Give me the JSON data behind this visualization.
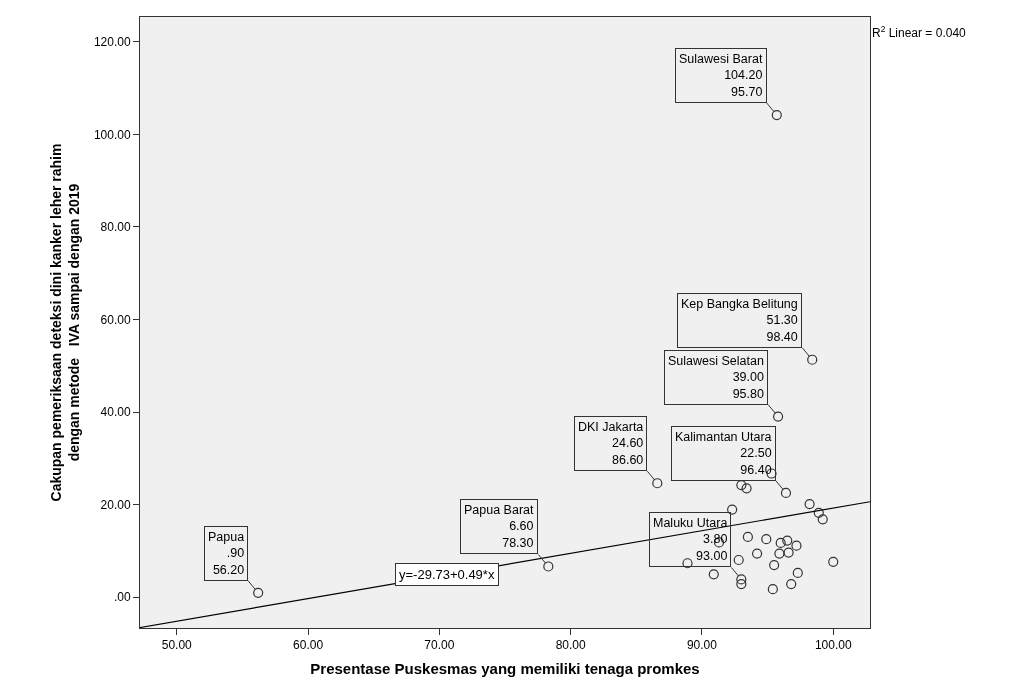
{
  "chart_data": {
    "type": "scatter",
    "xlabel": "Presentase Puskesmas yang memiliki tenaga promkes",
    "ylabel": "Cakupan pemeriksaan deteksi dini kanker leher rahim\ndengan metode   IVA sampai dengan 2019",
    "xlim": [
      47.2,
      102.8
    ],
    "xticks": [
      {
        "value": 50,
        "label": "50.00"
      },
      {
        "value": 60,
        "label": "60.00"
      },
      {
        "value": 70,
        "label": "70.00"
      },
      {
        "value": 80,
        "label": "80.00"
      },
      {
        "value": 90,
        "label": "90.00"
      },
      {
        "value": 100,
        "label": "100.00"
      }
    ],
    "ylim": [
      -6.7,
      125.4
    ],
    "yticks": [
      {
        "value": 0,
        "label": ".00"
      },
      {
        "value": 20,
        "label": "20.00"
      },
      {
        "value": 40,
        "label": "40.00"
      },
      {
        "value": 60,
        "label": "60.00"
      },
      {
        "value": 80,
        "label": "80.00"
      },
      {
        "value": 100,
        "label": "100.00"
      },
      {
        "value": 120,
        "label": "120.00"
      }
    ],
    "grid": false,
    "legend": false,
    "series": [
      {
        "marker": "circle",
        "color": "#333333",
        "x": [
          56.2,
          95.7,
          98.4,
          95.8,
          86.6,
          96.4,
          78.3,
          93.0,
          95.3,
          93.0,
          93.4,
          92.3,
          98.2,
          98.9,
          99.2,
          94.9,
          91.3,
          93.5,
          96.0,
          96.5,
          97.2,
          94.2,
          95.9,
          96.6,
          92.8,
          88.9,
          95.5,
          100.0,
          90.9,
          93.0,
          97.3,
          96.8,
          95.4
        ],
        "values": [
          0.9,
          104.2,
          51.3,
          39.0,
          24.6,
          22.5,
          6.6,
          3.8,
          26.7,
          24.2,
          23.5,
          18.9,
          20.1,
          18.2,
          16.8,
          12.5,
          11.8,
          13.0,
          11.7,
          12.2,
          11.1,
          9.4,
          9.4,
          9.6,
          8.0,
          7.3,
          6.9,
          7.6,
          4.9,
          2.8,
          5.2,
          2.8,
          1.7
        ]
      },
      {
        "type": "line",
        "color": "#000000",
        "x": [
          47.2,
          102.8
        ],
        "values": [
          -6.6,
          20.6
        ]
      }
    ],
    "annotations": [
      "R$^{2}$ Linear = 0.040",
      "y=-29.73+0.49*x",
      {
        "text": "Papua\n.90\n56.20",
        "x": 56.2,
        "y": 0.9
      },
      {
        "text": "Sulawesi Barat\n104.20\n95.70",
        "x": 95.7,
        "y": 104.2
      },
      {
        "text": "Kep Bangka Belitung\n51.30\n98.40",
        "x": 98.4,
        "y": 51.3
      },
      {
        "text": "Sulawesi Selatan\n39.00\n95.80",
        "x": 95.8,
        "y": 39.0
      },
      {
        "text": "DKI Jakarta\n24.60\n86.60",
        "x": 86.6,
        "y": 24.6
      },
      {
        "text": "Kalimantan Utara\n22.50\n96.40",
        "x": 96.4,
        "y": 22.5
      },
      {
        "text": "Papua Barat\n6.60\n78.30",
        "x": 78.3,
        "y": 6.6
      },
      {
        "text": "Maluku Utara\n3.80\n93.00",
        "x": 93.0,
        "y": 3.8
      }
    ]
  }
}
